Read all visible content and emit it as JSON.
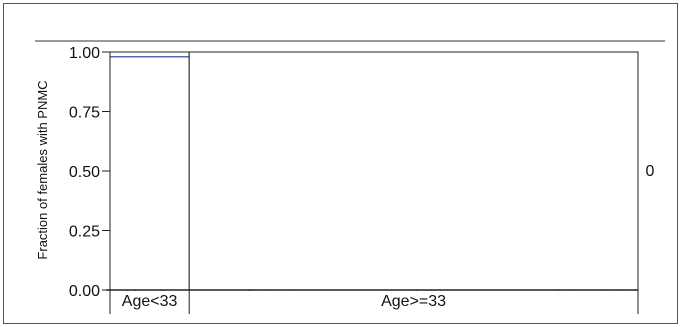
{
  "chart_data": {
    "type": "mosaic",
    "ylabel": "Fraction of females with PNMC",
    "ylim": [
      0,
      1
    ],
    "yticks": [
      "0.00",
      "0.25",
      "0.50",
      "0.75",
      "1.00"
    ],
    "categories": [
      "Age<33",
      "Age>=33"
    ],
    "column_widths": [
      0.15,
      0.85
    ],
    "series": [
      {
        "level": "0",
        "values": [
          0.98,
          1.0
        ],
        "color": "#d9414f"
      },
      {
        "level": "1",
        "values": [
          0.02,
          0.0
        ],
        "color": "#4a6fb5"
      }
    ],
    "side_labels": [
      "0"
    ],
    "grid": false
  }
}
